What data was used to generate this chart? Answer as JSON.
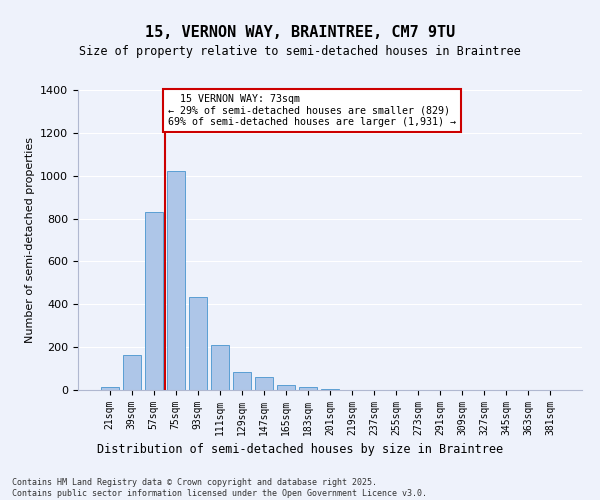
{
  "title": "15, VERNON WAY, BRAINTREE, CM7 9TU",
  "subtitle": "Size of property relative to semi-detached houses in Braintree",
  "xlabel": "Distribution of semi-detached houses by size in Braintree",
  "ylabel": "Number of semi-detached properties",
  "bin_labels": [
    "21sqm",
    "39sqm",
    "57sqm",
    "75sqm",
    "93sqm",
    "111sqm",
    "129sqm",
    "147sqm",
    "165sqm",
    "183sqm",
    "201sqm",
    "219sqm",
    "237sqm",
    "255sqm",
    "273sqm",
    "291sqm",
    "309sqm",
    "327sqm",
    "345sqm",
    "363sqm",
    "381sqm"
  ],
  "bin_values": [
    15,
    165,
    830,
    1020,
    435,
    210,
    85,
    60,
    22,
    15,
    5,
    0,
    0,
    0,
    0,
    0,
    0,
    0,
    0,
    0,
    0
  ],
  "bar_color": "#aec6e8",
  "bar_edge_color": "#5a9fd4",
  "property_sqm": 73,
  "property_label": "15 VERNON WAY: 73sqm",
  "pct_smaller": 29,
  "pct_larger": 69,
  "count_smaller": 829,
  "count_larger": 1931,
  "vline_color": "#cc0000",
  "annotation_box_color": "#cc0000",
  "ylim": [
    0,
    1400
  ],
  "yticks": [
    0,
    200,
    400,
    600,
    800,
    1000,
    1200,
    1400
  ],
  "background_color": "#eef2fb",
  "grid_color": "#ffffff",
  "footer_line1": "Contains HM Land Registry data © Crown copyright and database right 2025.",
  "footer_line2": "Contains public sector information licensed under the Open Government Licence v3.0."
}
